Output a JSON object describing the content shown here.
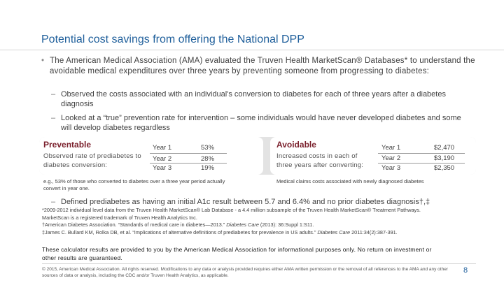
{
  "title": "Potential cost savings from offering the National DPP",
  "bullet": {
    "symbol": "•",
    "text": "The American Medical Association (AMA) evaluated the Truven Health MarketScan® Databases* to understand the avoidable medical expenditures over three years by preventing someone from progressing to diabetes:"
  },
  "sub_bullets": [
    {
      "symbol": "–",
      "text": "Observed the costs associated with an individual's conversion to diabetes for each of three years after a diabetes diagnosis"
    },
    {
      "symbol": "–",
      "text": "Looked at a “true” prevention rate for intervention – some individuals would have never developed diabetes and some will develop diabetes regardless"
    },
    {
      "symbol": "–",
      "text": "Defined prediabetes as having an initial A1c result between 5.7 and 6.4% and no prior diabetes diagnosis†,‡"
    }
  ],
  "preventable": {
    "heading": "Preventable",
    "description": "Observed rate of prediabetes to diabetes conversion:",
    "rows": [
      {
        "year": "Year 1",
        "value": "53%"
      },
      {
        "year": "Year 2",
        "value": "28%"
      },
      {
        "year": "Year 3",
        "value": "19%"
      }
    ],
    "note": "e.g., 53% of those who converted to diabetes over a three year period actually convert in year one."
  },
  "avoidable": {
    "heading": "Avoidable",
    "description": "Increased costs in each of three years after converting:",
    "rows": [
      {
        "year": "Year 1",
        "value": "$2,470"
      },
      {
        "year": "Year 2",
        "value": "$3,190"
      },
      {
        "year": "Year 3",
        "value": "$2,350"
      }
    ],
    "note": "Medical claims costs associated with newly diagnosed diabetes"
  },
  "references": {
    "r1": "*2009-2012 individual level data from the Truven Health MarketScan® Lab Database - a 4.4 million subsample of the Truven Health MarketScan® Treatment Pathways.",
    "r2": "MarketScan is a registered trademark of Truven Health Analytics Inc.",
    "r3_pre": "†American Diabetes Association. “Standards of medical care in diabetes—2013.” ",
    "r3_journal": "Diabetes Care",
    "r3_post": " (2013): 36:Suppl 1:S11.",
    "r4_pre": "‡James C. Bullard KM, Rolka DB, et al. “Implications of alternative definitions of prediabetes for prevalence in US adults.” ",
    "r4_journal": "Diabetes Care",
    "r4_post": " 2011:34(2):387-391."
  },
  "calculator_note": "These calculator results are provided to you by the American Medical Association for informational purposes only. No return on investment or other results are guaranteed.",
  "footer": "© 2015, American Medical Association. All rights reserved. Modifications to any data or analysis provided requires either AMA written permission or the removal of all references to the AMA and any other sources of data or analysis, including the CDC and/or Truven Health Analytics, as applicable.",
  "page_number": "8",
  "colors": {
    "title": "#1f5f9b",
    "heading": "#7a1f2b",
    "panel": "#e3e3e3"
  }
}
